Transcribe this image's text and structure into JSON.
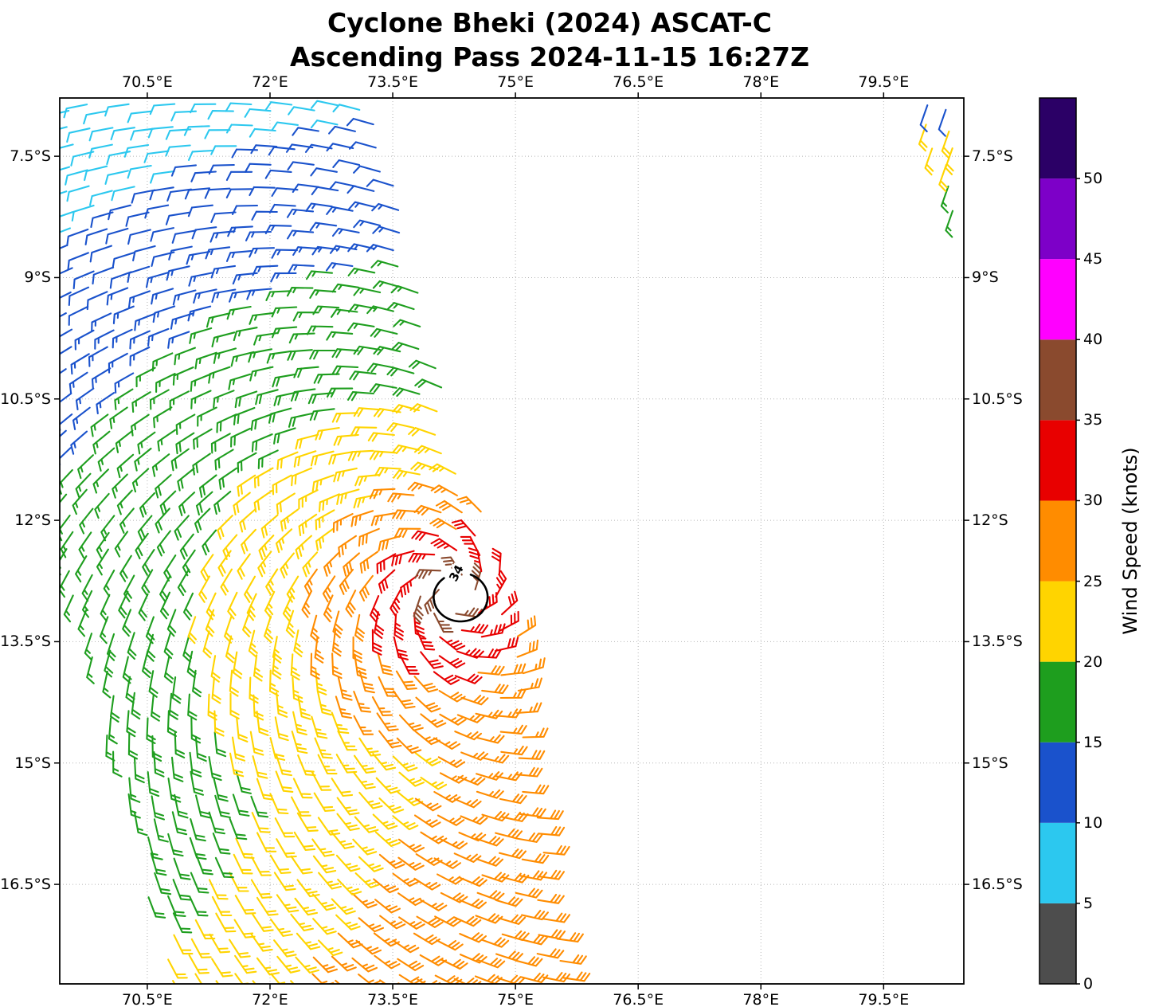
{
  "figure": {
    "title_line1": "Cyclone Bheki (2024) ASCAT-C",
    "title_line2": "Ascending Pass 2024-11-15 16:27Z"
  },
  "chart_data": {
    "type": "scatter",
    "variant": "wind-barb-field",
    "title": "Cyclone Bheki (2024) ASCAT-C — Ascending Pass 2024-11-15 16:27Z",
    "xlabel": "",
    "ylabel": "",
    "x_ticks": [
      "70.5°E",
      "72°E",
      "73.5°E",
      "75°E",
      "76.5°E",
      "78°E",
      "79.5°E"
    ],
    "x_tick_lons": [
      70.5,
      72,
      73.5,
      75,
      76.5,
      78,
      79.5
    ],
    "y_ticks": [
      "7.5°S",
      "9°S",
      "10.5°S",
      "12°S",
      "13.5°S",
      "15°S",
      "16.5°S"
    ],
    "y_tick_lats": [
      -7.5,
      -9,
      -10.5,
      -12,
      -13.5,
      -15,
      -16.5
    ],
    "xlim": [
      69.43,
      80.48
    ],
    "ylim": [
      -17.73,
      -6.78
    ],
    "grid": true,
    "colorbar": {
      "label": "Wind Speed (knots)",
      "tick_labels": [
        "0",
        "5",
        "10",
        "15",
        "20",
        "25",
        "30",
        "35",
        "40",
        "45",
        "50"
      ],
      "tick_values": [
        0,
        5,
        10,
        15,
        20,
        25,
        30,
        35,
        40,
        45,
        50
      ],
      "range": [
        0,
        55
      ],
      "segments": [
        {
          "from": 0,
          "to": 5,
          "color": "#4d4d4d"
        },
        {
          "from": 5,
          "to": 10,
          "color": "#2cc8ef"
        },
        {
          "from": 10,
          "to": 15,
          "color": "#1a52cc"
        },
        {
          "from": 15,
          "to": 20,
          "color": "#1e9e1e"
        },
        {
          "from": 20,
          "to": 25,
          "color": "#ffd400"
        },
        {
          "from": 25,
          "to": 30,
          "color": "#ff8c00"
        },
        {
          "from": 30,
          "to": 35,
          "color": "#e80000"
        },
        {
          "from": 35,
          "to": 40,
          "color": "#8a4a2e"
        },
        {
          "from": 40,
          "to": 45,
          "color": "#ff00ff"
        },
        {
          "from": 45,
          "to": 50,
          "color": "#7d00c8"
        },
        {
          "from": 50,
          "to": 55,
          "color": "#2b0066"
        }
      ]
    },
    "contour_label": "34",
    "contour": {
      "level_knots": 34,
      "center_lon": 74.33,
      "center_lat": -12.95,
      "rx_deg": 0.33,
      "ry_deg": 0.3,
      "color": "#000000"
    },
    "wind_field": {
      "description": "ASCAT-C scatterometer wind barbs, 0.25 deg grid, ascending swath; clockwise (Southern Hemisphere) circulation around cyclone center",
      "grid_spacing_deg": 0.25,
      "cyclone_center_lon": 74.2,
      "cyclone_center_lat": -12.9,
      "max_wind_knots": 36,
      "rotation": "clockwise",
      "inflow_angle_deg": 25,
      "speed_radius_knots": [
        [
          0,
          37
        ],
        [
          0.26,
          35
        ],
        [
          0.6,
          30
        ],
        [
          1.05,
          25
        ],
        [
          1.85,
          20
        ],
        [
          3.1,
          15
        ],
        [
          4.4,
          10
        ],
        [
          6.0,
          8
        ]
      ],
      "asymmetry": {
        "a0": 0.66,
        "north": 0.1,
        "east": 0.06
      },
      "background_south": {
        "base": 14,
        "per_deg_east": 2.6,
        "per_deg_south": 1.6,
        "ref_lon": 70.5,
        "ref_lat": -13.8,
        "start_lat": -13.5,
        "ramp_deg": 0.8,
        "cap": 28
      },
      "swath": {
        "left_lat_ref": -13.5,
        "left_lon_ref": 69.72,
        "left_slope": 0.245,
        "right_lat_ref": -6.8,
        "right_lon_ref": 73.3,
        "right_slope": 0.225,
        "bulge_amp": 0.3,
        "bulge_lat": -13.1,
        "bulge_width": 1.6,
        "ne_patch": {
          "lon_ref": 79.9,
          "slope": 0.23,
          "lat_min": -8.45,
          "speeds": [
            [
              -7.0,
              12
            ],
            [
              -7.8,
              22
            ],
            [
              -99,
              17
            ]
          ],
          "wind_to_east": 0.33,
          "wind_to_north": 0.94
        }
      }
    }
  }
}
